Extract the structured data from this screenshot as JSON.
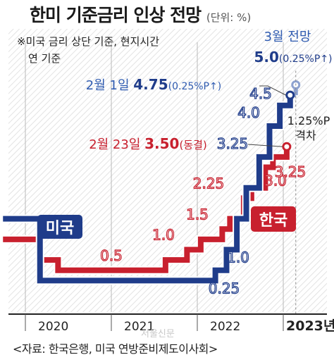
{
  "header": {
    "title": "한미 기준금리 인상 전망",
    "unit": "(단위: %)"
  },
  "note": {
    "line1": "※미국 금리 상단 기준, 현지시간",
    "line2": "연 기준"
  },
  "source": "<자료: 한국은행, 미국 연방준비제도이사회>",
  "watermark": "서울신문",
  "chart_data": {
    "type": "line",
    "title": "한미 기준금리 인상 전망",
    "unit": "%",
    "step": true,
    "x_ticks": [
      "2020",
      "2021",
      "2022",
      "2023년"
    ],
    "ylim": [
      0,
      5.25
    ],
    "grid": "vertical",
    "series": [
      {
        "name": "미국",
        "color": "#1f3c8a",
        "label_style": "boxed",
        "points": [
          {
            "x": "2019.92",
            "y": 1.75
          },
          {
            "x": "2020.17",
            "y": 0.25
          },
          {
            "x": "2022.21",
            "y": 0.5
          },
          {
            "x": "2022.34",
            "y": 1.0
          },
          {
            "x": "2022.46",
            "y": 1.75
          },
          {
            "x": "2022.57",
            "y": 2.5
          },
          {
            "x": "2022.72",
            "y": 3.25
          },
          {
            "x": "2022.84",
            "y": 4.0
          },
          {
            "x": "2022.96",
            "y": 4.5
          },
          {
            "x": "2023.08",
            "y": 4.75
          }
        ],
        "labels": [
          {
            "text": "0.25",
            "y": 0.25
          },
          {
            "text": "1.0",
            "y": 1.0
          },
          {
            "text": "3.25",
            "y": 3.25
          },
          {
            "text": "4.0",
            "y": 4.0
          },
          {
            "text": "4.5",
            "y": 4.5
          }
        ],
        "forecast": {
          "from": 4.75,
          "to": 5.0,
          "color": "#8ea2d0"
        }
      },
      {
        "name": "한국",
        "color": "#c8202e",
        "label_style": "boxed",
        "points": [
          {
            "x": "2019.92",
            "y": 1.25
          },
          {
            "x": "2020.17",
            "y": 0.75
          },
          {
            "x": "2020.38",
            "y": 0.5
          },
          {
            "x": "2021.63",
            "y": 0.75
          },
          {
            "x": "2021.88",
            "y": 1.0
          },
          {
            "x": "2022.04",
            "y": 1.25
          },
          {
            "x": "2022.29",
            "y": 1.5
          },
          {
            "x": "2022.38",
            "y": 1.75
          },
          {
            "x": "2022.54",
            "y": 2.25
          },
          {
            "x": "2022.63",
            "y": 2.5
          },
          {
            "x": "2022.79",
            "y": 3.0
          },
          {
            "x": "2022.88",
            "y": 3.25
          },
          {
            "x": "2023.04",
            "y": 3.5
          }
        ],
        "labels": [
          {
            "text": "0.5",
            "y": 0.5
          },
          {
            "text": "1.0",
            "y": 1.0
          },
          {
            "text": "1.5",
            "y": 1.5
          },
          {
            "text": "2.25",
            "y": 2.25
          },
          {
            "text": "3.0",
            "y": 3.0
          },
          {
            "text": "3.25",
            "y": 3.25
          }
        ]
      }
    ],
    "annotations": {
      "us_feb1": {
        "date": "2월 1일",
        "value": "4.75",
        "change": "(0.25%P↑)"
      },
      "us_march": {
        "title": "3월 전망",
        "value": "5.0",
        "change": "(0.25%P↑)"
      },
      "kr_feb23": {
        "date": "2월 23일",
        "value": "3.50",
        "change": "(동결)"
      },
      "gap": {
        "line1": "1.25%P",
        "line2": "격차"
      }
    }
  }
}
